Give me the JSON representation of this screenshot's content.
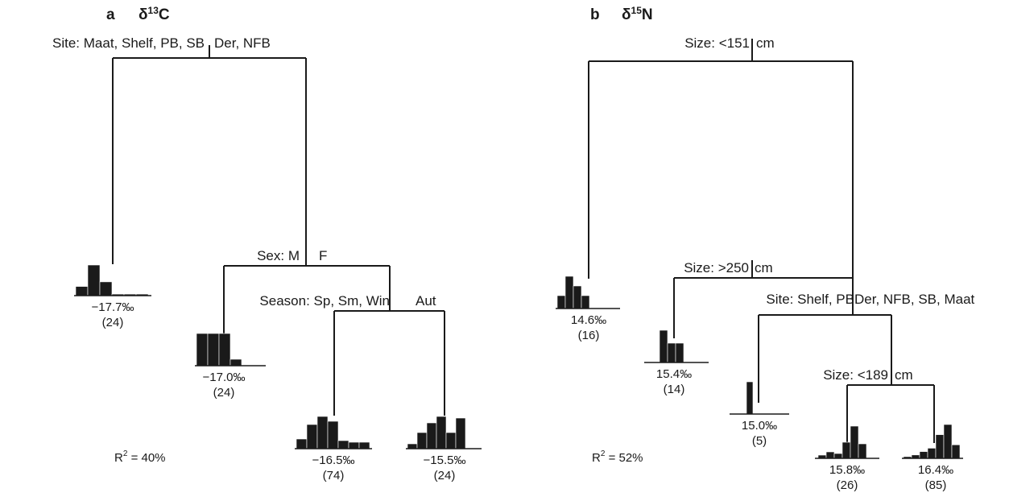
{
  "panels": [
    {
      "letter": "a",
      "title_main": "δ",
      "title_sup": "13",
      "title_end": "C",
      "splits": [
        {
          "left": "Site: Maat, Shelf, PB, SB",
          "right": "Der, NFB"
        },
        {
          "left": "Sex: M",
          "right": "F"
        },
        {
          "left": "Season: Sp, Sm, Win",
          "right": "Aut"
        }
      ],
      "leaves": [
        {
          "mean": "−17.7‰",
          "n": "(24)",
          "bars": [
            0.3,
            1.0,
            0.45,
            0.05,
            0.05,
            0.05
          ]
        },
        {
          "mean": "−17.0‰",
          "n": "(24)",
          "bars": [
            1.0,
            1.0,
            1.0,
            0.2
          ]
        },
        {
          "mean": "−16.5‰",
          "n": "(74)",
          "bars": [
            0.3,
            0.75,
            1.0,
            0.85,
            0.25,
            0.2,
            0.2
          ]
        },
        {
          "mean": "−15.5‰",
          "n": "(24)",
          "bars": [
            0.15,
            0.5,
            0.8,
            1.0,
            0.5,
            0.95
          ]
        }
      ],
      "r2_label": "R",
      "r2_sup": "2",
      "r2_value": " = 40%"
    },
    {
      "letter": "b",
      "title_main": "δ",
      "title_sup": "15",
      "title_end": "N",
      "splits": [
        {
          "left": "Size: <151",
          "right": "cm"
        },
        {
          "left": "Size: >250",
          "right": "cm"
        },
        {
          "left": "Site: Shelf, PB",
          "right": "Der, NFB, SB, Maat"
        },
        {
          "left": "Size:  <189",
          "right": "cm"
        }
      ],
      "leaves": [
        {
          "mean": "14.6‰",
          "n": "(16)",
          "bars": [
            0.4,
            1.0,
            0.7,
            0.4
          ]
        },
        {
          "mean": "15.4‰",
          "n": "(14)",
          "bars": [
            1.0,
            0.6,
            0.6
          ]
        },
        {
          "mean": "15.0‰",
          "n": "(5)",
          "bars": [
            1.0
          ]
        },
        {
          "mean": "15.8‰",
          "n": "(26)",
          "bars": [
            0.1,
            0.2,
            0.15,
            0.5,
            1.0,
            0.45
          ]
        },
        {
          "mean": "16.4‰",
          "n": "(85)",
          "bars": [
            0.05,
            0.1,
            0.2,
            0.3,
            0.7,
            1.0,
            0.4
          ]
        }
      ],
      "r2_label": "R",
      "r2_sup": "2",
      "r2_value": " = 52%"
    }
  ]
}
